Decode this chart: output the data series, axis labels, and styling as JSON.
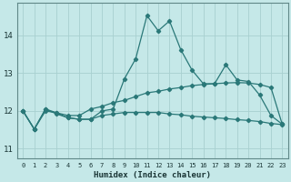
{
  "xlabel": "Humidex (Indice chaleur)",
  "bg_color": "#c5e8e8",
  "grid_color": "#a8d0d0",
  "line_color": "#2a7878",
  "xlim": [
    -0.5,
    23.5
  ],
  "ylim": [
    10.75,
    14.85
  ],
  "yticks": [
    11,
    12,
    13,
    14
  ],
  "xticks": [
    0,
    1,
    2,
    3,
    4,
    5,
    6,
    7,
    8,
    9,
    10,
    11,
    12,
    13,
    14,
    15,
    16,
    17,
    18,
    19,
    20,
    21,
    22,
    23
  ],
  "series1": [
    12.0,
    11.52,
    12.05,
    11.92,
    11.82,
    11.78,
    11.78,
    12.0,
    12.05,
    12.85,
    13.38,
    14.52,
    14.12,
    14.38,
    13.62,
    13.08,
    12.72,
    12.72,
    13.22,
    12.82,
    12.78,
    12.42,
    11.88,
    11.65
  ],
  "series2": [
    12.0,
    11.52,
    12.05,
    11.95,
    11.88,
    11.88,
    12.05,
    12.12,
    12.22,
    12.28,
    12.38,
    12.48,
    12.52,
    12.58,
    12.62,
    12.67,
    12.7,
    12.72,
    12.74,
    12.75,
    12.74,
    12.7,
    12.62,
    11.65
  ],
  "series3": [
    12.0,
    11.52,
    12.0,
    11.95,
    11.82,
    11.78,
    11.78,
    11.88,
    11.92,
    11.96,
    11.96,
    11.96,
    11.96,
    11.92,
    11.9,
    11.86,
    11.84,
    11.82,
    11.8,
    11.77,
    11.75,
    11.72,
    11.67,
    11.64
  ]
}
